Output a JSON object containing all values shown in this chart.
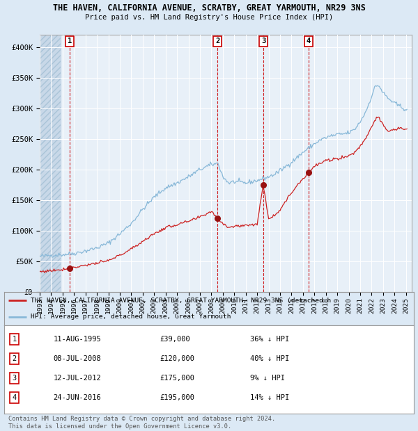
{
  "title": "THE HAVEN, CALIFORNIA AVENUE, SCRATBY, GREAT YARMOUTH, NR29 3NS",
  "subtitle": "Price paid vs. HM Land Registry's House Price Index (HPI)",
  "background_color": "#dce9f5",
  "plot_bg_color": "#e8f0f8",
  "hatch_color": "#c5d8e8",
  "grid_color": "#ffffff",
  "red_line_color": "#cc2222",
  "blue_line_color": "#88b8d8",
  "sale_marker_color": "#991111",
  "yticks": [
    0,
    50000,
    100000,
    150000,
    200000,
    250000,
    300000,
    350000,
    400000
  ],
  "sales": [
    {
      "num": "1",
      "x": 1995.617,
      "price": 39000
    },
    {
      "num": "2",
      "x": 2008.533,
      "price": 120000
    },
    {
      "num": "3",
      "x": 2012.533,
      "price": 175000
    },
    {
      "num": "4",
      "x": 2016.483,
      "price": 195000
    }
  ],
  "legend_red_label": "THE HAVEN, CALIFORNIA AVENUE, SCRATBY, GREAT YARMOUTH, NR29 3NS (detached h",
  "legend_blue_label": "HPI: Average price, detached house, Great Yarmouth",
  "footnote": "Contains HM Land Registry data © Crown copyright and database right 2024.\nThis data is licensed under the Open Government Licence v3.0.",
  "table_rows": [
    [
      "1",
      "11-AUG-1995",
      "£39,000",
      "36% ↓ HPI"
    ],
    [
      "2",
      "08-JUL-2008",
      "£120,000",
      "40% ↓ HPI"
    ],
    [
      "3",
      "12-JUL-2012",
      "£175,000",
      "9% ↓ HPI"
    ],
    [
      "4",
      "24-JUN-2016",
      "£195,000",
      "14% ↓ HPI"
    ]
  ]
}
